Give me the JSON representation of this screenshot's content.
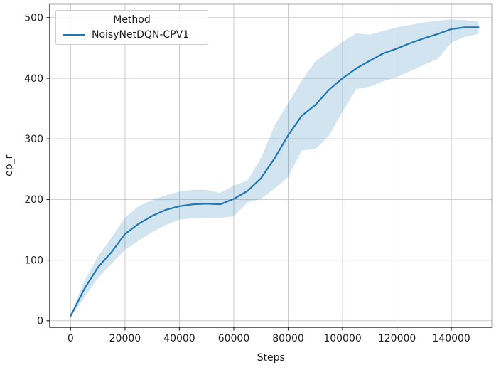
{
  "figure": {
    "background": "#ffffff"
  },
  "colors": {
    "line": "#1f77b4",
    "band": "rgba(31,119,180,0.2)",
    "grid": "#c9c9c9",
    "spine": "#262626",
    "text": "#1a1a1a",
    "legend_border": "#cccccc"
  },
  "legend": {
    "title": "Method",
    "entries": [
      {
        "label": "NoisyNetDQN-CPV1",
        "color": "#1f77b4"
      }
    ]
  },
  "chart_data": {
    "type": "line",
    "title": "",
    "xlabel": "Steps",
    "ylabel": "ep_r",
    "grid": true,
    "legend_position": "upper left",
    "xlim": [
      -7680,
      155000
    ],
    "ylim": [
      -10.8,
      522.6
    ],
    "x_ticks": [
      0,
      20000,
      40000,
      60000,
      80000,
      100000,
      120000,
      140000
    ],
    "y_ticks": [
      0,
      100,
      200,
      300,
      400,
      500
    ],
    "series": [
      {
        "name": "NoisyNetDQN-CPV1",
        "color": "#1f77b4",
        "band_color": "rgba(31,119,180,0.2)",
        "x": [
          0,
          5000,
          10000,
          15000,
          20000,
          25000,
          30000,
          35000,
          40000,
          45000,
          50000,
          55000,
          60000,
          65000,
          70000,
          75000,
          80000,
          85000,
          90000,
          95000,
          100000,
          105000,
          110000,
          115000,
          120000,
          125000,
          130000,
          135000,
          140000,
          145000,
          150000
        ],
        "y": [
          8,
          52,
          88,
          113,
          143,
          160,
          173,
          183,
          189,
          192,
          193,
          192,
          201,
          214,
          235,
          268,
          306,
          338,
          356,
          381,
          400,
          416,
          429,
          441,
          449,
          458,
          466,
          473,
          481,
          484,
          484
        ],
        "y_lower": [
          6,
          38,
          70,
          94,
          117,
          132,
          146,
          158,
          167,
          169,
          170,
          170,
          172,
          195,
          201,
          218,
          237,
          281,
          283,
          305,
          345,
          382,
          386,
          395,
          402,
          412,
          422,
          432,
          459,
          468,
          473
        ],
        "y_upper": [
          10,
          65,
          106,
          137,
          170,
          189,
          199,
          207,
          213,
          216,
          216,
          211,
          223,
          231,
          268,
          322,
          359,
          396,
          428,
          444,
          460,
          474,
          472,
          478,
          484,
          488,
          492,
          495,
          497,
          496,
          494
        ]
      }
    ]
  }
}
